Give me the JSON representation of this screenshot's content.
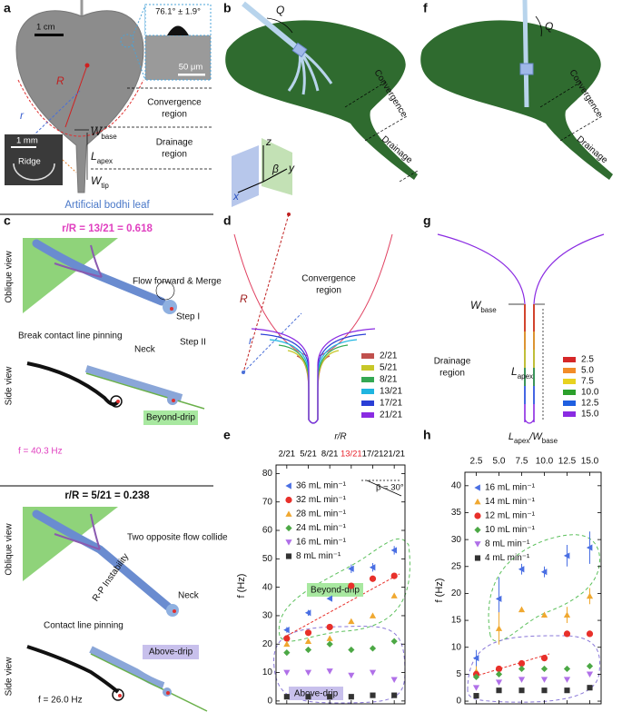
{
  "panels": {
    "labels": [
      "a",
      "b",
      "c",
      "d",
      "e",
      "f",
      "g",
      "h"
    ],
    "a": {
      "scale_bar": "1 cm",
      "contact_angle": "76.1° ± 1.9°",
      "inset_scale": "50 μm",
      "R": "R",
      "r": "r",
      "convergence_region": [
        "Convergence",
        "region"
      ],
      "drainage_region": [
        "Drainage",
        "region"
      ],
      "w_base": {
        "main": "W",
        "sub": "base"
      },
      "l_apex": {
        "main": "L",
        "sub": "apex"
      },
      "w_tip": {
        "main": "W",
        "sub": "tip"
      },
      "ridge_scale": "1 mm",
      "ridge": "Ridge",
      "caption": "Artificial bodhi leaf"
    },
    "b": {
      "flow": "Q",
      "convergence": "Convergence",
      "drainage": "Drainage",
      "axes": [
        "x",
        "y",
        "z"
      ],
      "angle": "β"
    },
    "f": {
      "flow": "Q",
      "convergence": "Convergence",
      "drainage": "Drainage"
    },
    "c": {
      "cases": [
        {
          "title": "r/R = 13/21 = 0.618",
          "oblique": "Oblique view",
          "side": "Side view",
          "notes": [
            "Flow forward & Merge",
            "Step I",
            "Break contact line pinning",
            "Step II",
            "Neck"
          ],
          "regime": "Beyond-drip",
          "frequency": "f = 40.3 Hz"
        },
        {
          "title": "r/R = 5/21 = 0.238",
          "oblique": "Oblique view",
          "side": "Side view",
          "notes": [
            "Two opposite flow collide",
            "R-P Instability",
            "Neck",
            "Contact line pinning"
          ],
          "regime": "Above-drip",
          "frequency": "f = 26.0 Hz"
        }
      ]
    },
    "d": {
      "R": "R",
      "r": "r",
      "region": [
        "Convergence",
        "region"
      ],
      "legend": [
        {
          "label": "2/21",
          "color": "#c0504d"
        },
        {
          "label": "5/21",
          "color": "#c7c728"
        },
        {
          "label": "8/21",
          "color": "#34a853"
        },
        {
          "label": "13/21",
          "color": "#1fb5e0"
        },
        {
          "label": "17/21",
          "color": "#2a3fd6"
        },
        {
          "label": "21/21",
          "color": "#8a2be2"
        }
      ]
    },
    "g": {
      "w_base": {
        "main": "W",
        "sub": "base"
      },
      "region": [
        "Drainage",
        "region"
      ],
      "l_apex": {
        "main": "L",
        "sub": "apex"
      },
      "legend": [
        {
          "label": "2.5",
          "color": "#d62728"
        },
        {
          "label": "5.0",
          "color": "#f28c28"
        },
        {
          "label": "7.5",
          "color": "#e8d21f"
        },
        {
          "label": "10.0",
          "color": "#2ca02c"
        },
        {
          "label": "12.5",
          "color": "#1f5fe0"
        },
        {
          "label": "15.0",
          "color": "#8a2be2"
        }
      ]
    }
  },
  "chart_data": [
    {
      "type": "scatter",
      "x_label": "r/R",
      "y_label": "f (Hz)",
      "categories": [
        "2/21",
        "5/21",
        "8/21",
        "13/21",
        "17/21",
        "21/21"
      ],
      "category_colors": [
        "#000000",
        "#000000",
        "#000000",
        "#e8202a",
        "#000000",
        "#000000"
      ],
      "ylim": [
        -1,
        83
      ],
      "yticks": [
        0,
        10,
        20,
        30,
        40,
        50,
        60,
        70,
        80
      ],
      "legend": "upper left",
      "annotations": [
        "β = 30°",
        "Beyond-drip",
        "Above-drip"
      ],
      "series": [
        {
          "name": "36 mL min⁻¹",
          "color": "#4a6fe3",
          "marker": "triangle-left",
          "values": [
            25,
            31,
            36,
            46.5,
            47,
            53
          ],
          "errors": [
            1,
            1,
            0.5,
            1.5,
            1.5,
            1.5
          ]
        },
        {
          "name": "32 mL min⁻¹",
          "color": "#e8302a",
          "marker": "circle",
          "values": [
            22,
            24,
            26,
            40.5,
            43,
            44
          ]
        },
        {
          "name": "28 mL min⁻¹",
          "color": "#f0a830",
          "marker": "triangle-up",
          "values": [
            20,
            21,
            22,
            28,
            30,
            37
          ]
        },
        {
          "name": "24 mL min⁻¹",
          "color": "#4ca845",
          "marker": "diamond",
          "values": [
            17,
            18,
            20,
            18,
            18.5,
            21
          ]
        },
        {
          "name": "16 mL min⁻¹",
          "color": "#b070e8",
          "marker": "triangle-down",
          "values": [
            10,
            10,
            10.5,
            9,
            10,
            7.5
          ]
        },
        {
          "name": "8 mL min⁻¹",
          "color": "#333333",
          "marker": "square",
          "values": [
            1.5,
            1.5,
            1.5,
            1.5,
            2,
            2
          ]
        }
      ]
    },
    {
      "type": "scatter",
      "x_label": [
        "L",
        "apex",
        "/W",
        "base"
      ],
      "y_label": "f (Hz)",
      "x": [
        2.5,
        5,
        7.5,
        10,
        12.5,
        15
      ],
      "xlim": [
        1.25,
        16.25
      ],
      "xticks": [
        2.5,
        {
          "value": 5,
          "label": "5.0"
        },
        7.5,
        {
          "value": 10,
          "label": "10.0"
        },
        12.5,
        {
          "value": 15,
          "label": "15.0"
        }
      ],
      "ylim": [
        -0.5,
        42.5
      ],
      "yticks": [
        0,
        5,
        10,
        15,
        20,
        25,
        30,
        35,
        40
      ],
      "legend": "upper left",
      "series": [
        {
          "name": "16 mL min⁻¹",
          "color": "#4a6fe3",
          "marker": "triangle-left",
          "values": [
            8,
            19,
            24.5,
            24,
            27,
            28.5
          ],
          "errors": [
            1.5,
            4,
            1,
            1,
            2,
            3
          ]
        },
        {
          "name": "14 mL min⁻¹",
          "color": "#f0a830",
          "marker": "triangle-up",
          "values": [
            5.5,
            13.5,
            17,
            16,
            16,
            19.5
          ],
          "errors": [
            1,
            3,
            0.5,
            0.5,
            1.5,
            1.5
          ]
        },
        {
          "name": "12 mL min⁻¹",
          "color": "#e8302a",
          "marker": "circle",
          "values": [
            5,
            6,
            7,
            8,
            12.5,
            12.5
          ]
        },
        {
          "name": "10 mL min⁻¹",
          "color": "#4ca845",
          "marker": "diamond",
          "values": [
            4.5,
            5,
            6,
            6,
            6,
            6.5
          ]
        },
        {
          "name": "8 mL min⁻¹",
          "color": "#b070e8",
          "marker": "triangle-down",
          "values": [
            2.5,
            3.5,
            4,
            4,
            4,
            5
          ]
        },
        {
          "name": "4 mL min⁻¹",
          "color": "#333333",
          "marker": "square",
          "values": [
            1,
            2,
            2,
            2,
            2,
            2.5
          ]
        }
      ]
    }
  ]
}
